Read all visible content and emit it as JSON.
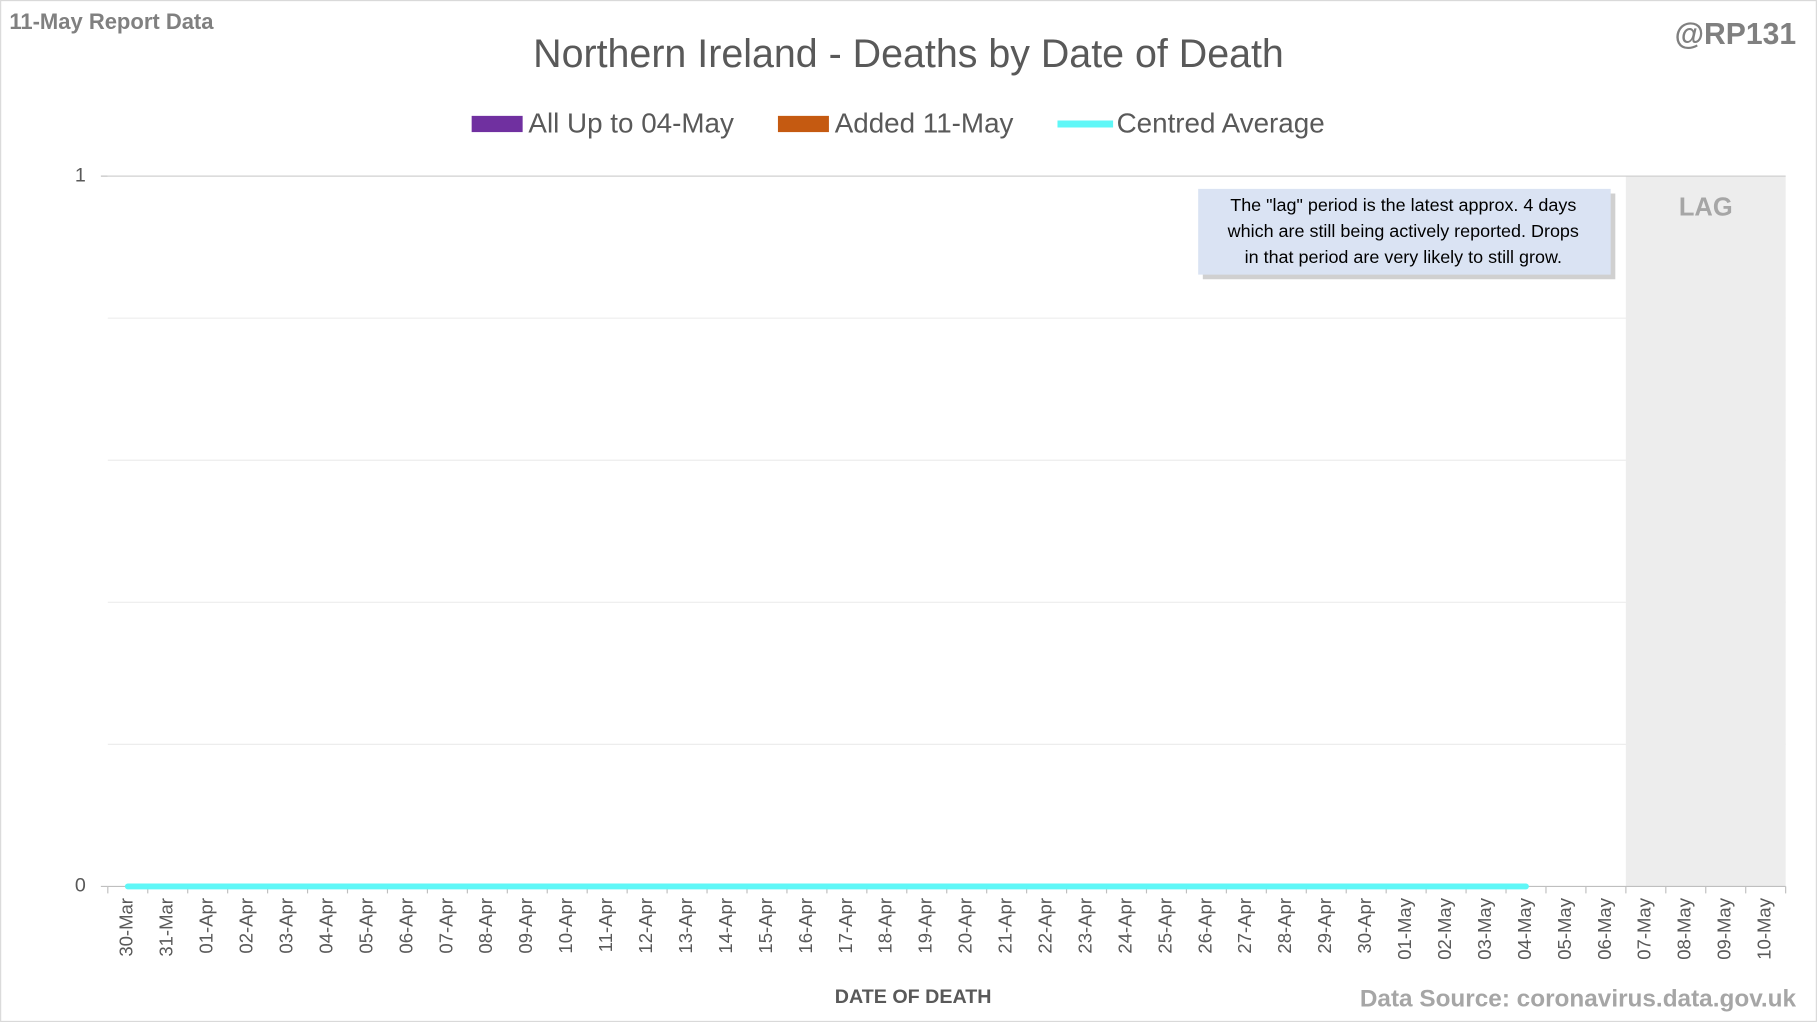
{
  "chart_data": {
    "type": "bar",
    "corner_label": "11-May Report Data",
    "handle": "@RP131",
    "title": "Northern Ireland - Deaths by Date of Death",
    "x_label": "DATE OF DEATH",
    "source": "Data Source: coronavirus.data.gov.uk",
    "annotation": [
      "The \"lag\" period is the latest approx. 4 days",
      "which are still being actively reported.  Drops",
      "in that period are very likely to still grow."
    ],
    "lag_label": "LAG",
    "lag_days": 4,
    "categories": [
      "30-Mar",
      "31-Mar",
      "01-Apr",
      "02-Apr",
      "03-Apr",
      "04-Apr",
      "05-Apr",
      "06-Apr",
      "07-Apr",
      "08-Apr",
      "09-Apr",
      "10-Apr",
      "11-Apr",
      "12-Apr",
      "13-Apr",
      "14-Apr",
      "15-Apr",
      "16-Apr",
      "17-Apr",
      "18-Apr",
      "19-Apr",
      "20-Apr",
      "21-Apr",
      "22-Apr",
      "23-Apr",
      "24-Apr",
      "25-Apr",
      "26-Apr",
      "27-Apr",
      "28-Apr",
      "29-Apr",
      "30-Apr",
      "01-May",
      "02-May",
      "03-May",
      "04-May",
      "05-May",
      "06-May",
      "07-May",
      "08-May",
      "09-May",
      "10-May"
    ],
    "series": [
      {
        "name": "All Up to 04-May",
        "color": "#7030a0",
        "values": [
          0,
          0,
          0,
          0,
          0,
          0,
          0,
          0,
          0,
          0,
          0,
          0,
          0,
          0,
          0,
          0,
          0,
          0,
          0,
          0,
          0,
          0,
          0,
          0,
          0,
          0,
          0,
          0,
          0,
          0,
          0,
          0,
          0,
          0,
          0,
          0,
          0,
          0,
          0,
          0,
          0,
          0
        ]
      },
      {
        "name": "Added 11-May",
        "color": "#c55a11",
        "values": [
          0,
          0,
          0,
          0,
          0,
          0,
          0,
          0,
          0,
          0,
          0,
          0,
          0,
          0,
          0,
          0,
          0,
          0,
          0,
          0,
          0,
          0,
          0,
          0,
          0,
          0,
          0,
          0,
          0,
          0,
          0,
          0,
          0,
          0,
          0,
          0,
          0,
          0,
          0,
          0,
          0,
          0
        ]
      },
      {
        "name": "Centred Average",
        "color": "#5ff7f7",
        "kind": "line",
        "values": [
          0,
          0,
          0,
          0,
          0,
          0,
          0,
          0,
          0,
          0,
          0,
          0,
          0,
          0,
          0,
          0,
          0,
          0,
          0,
          0,
          0,
          0,
          0,
          0,
          0,
          0,
          0,
          0,
          0,
          0,
          0,
          0,
          0,
          0,
          0,
          0,
          null,
          null,
          null,
          null,
          null,
          null
        ]
      }
    ],
    "ylim": [
      0,
      1
    ],
    "yticks": [
      0,
      1
    ],
    "ygrid": [
      0.2,
      0.4,
      0.6,
      0.8,
      1
    ],
    "grid": true
  }
}
